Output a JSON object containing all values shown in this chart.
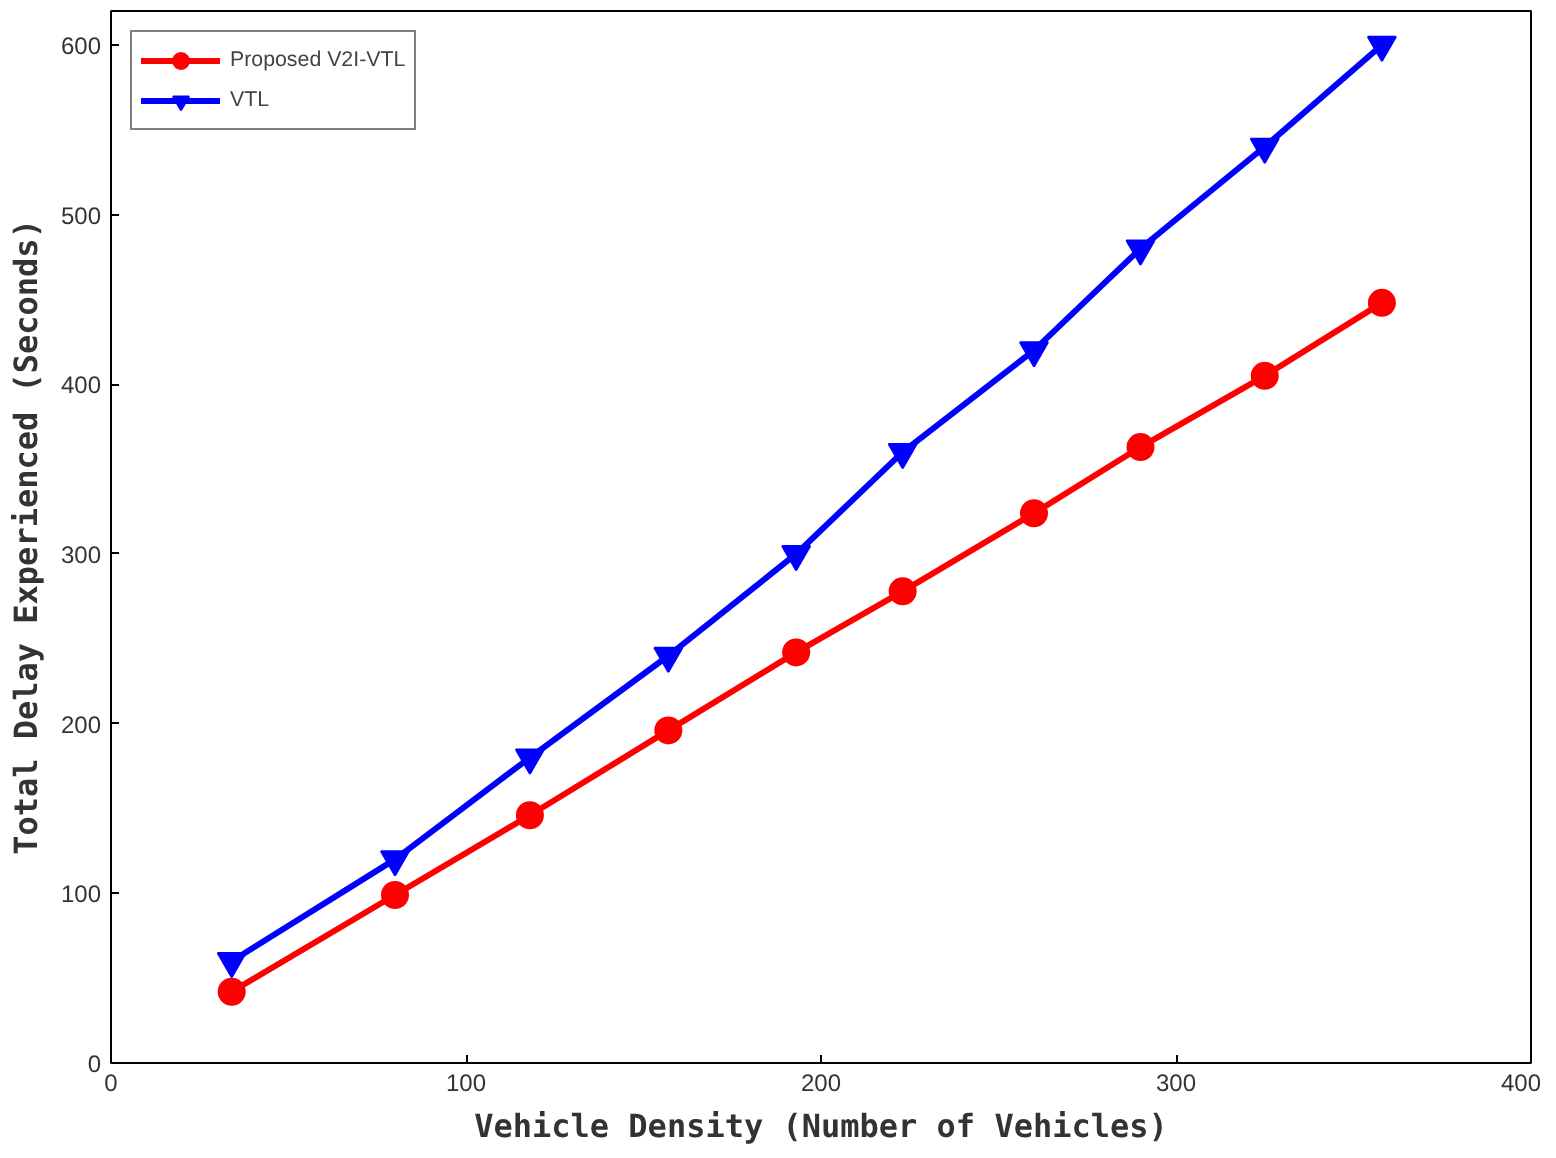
{
  "chart_data": {
    "type": "line",
    "xlabel": "Vehicle Density (Number of Vehicles)",
    "ylabel": "Total Delay Experienced (Seconds)",
    "x": [
      34,
      80,
      118,
      157,
      193,
      223,
      260,
      290,
      325,
      358
    ],
    "series": [
      {
        "name": "Proposed V2I-VTL",
        "color": "#ff0000",
        "marker": "circle",
        "values": [
          42,
          99,
          146,
          196,
          242,
          278,
          324,
          363,
          405,
          448
        ]
      },
      {
        "name": "VTL",
        "color": "#0000ff",
        "marker": "triangle",
        "values": [
          60,
          120,
          180,
          240,
          300,
          360,
          420,
          480,
          540,
          600
        ]
      }
    ],
    "xlim": [
      0,
      400
    ],
    "xticks": [
      0,
      100,
      200,
      300,
      400
    ],
    "ylim": [
      0,
      620
    ],
    "yticks": [
      0,
      100,
      200,
      300,
      400,
      500,
      600
    ],
    "grid": false,
    "legend": "top left",
    "line_style": "solid"
  }
}
